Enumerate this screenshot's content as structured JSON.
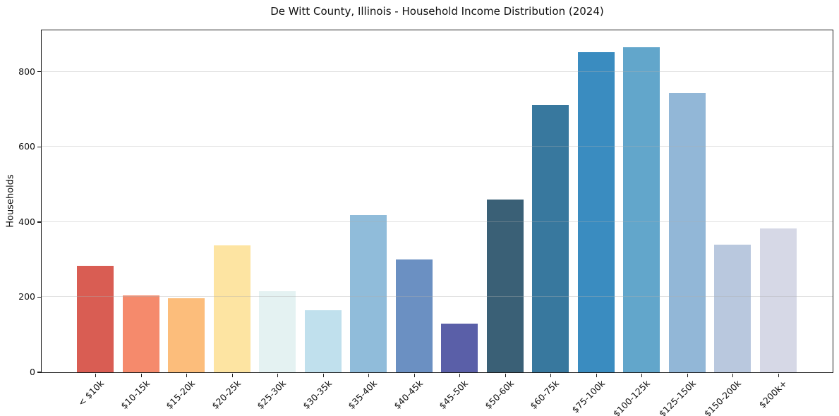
{
  "chart_data": {
    "type": "bar",
    "title": "De Witt County, Illinois - Household Income Distribution (2024)",
    "xlabel": "",
    "ylabel": "Households",
    "categories": [
      "< $10k",
      "$10-15k",
      "$15-20k",
      "$20-25k",
      "$25-30k",
      "$30-35k",
      "$35-40k",
      "$40-45k",
      "$45-50k",
      "$50-60k",
      "$60-75k",
      "$75-100k",
      "$100-125k",
      "$125-150k",
      "$150-200k",
      "$200k+"
    ],
    "values": [
      282,
      203,
      197,
      337,
      215,
      165,
      418,
      299,
      128,
      459,
      711,
      850,
      864,
      743,
      339,
      382
    ],
    "bar_colors": [
      "#d95d53",
      "#f58a6c",
      "#fcbd7b",
      "#fde4a2",
      "#e4f2f2",
      "#c0e0ed",
      "#90bcda",
      "#6b90c2",
      "#5a5fa8",
      "#3a6076",
      "#38789e",
      "#3a8cc0",
      "#62a6cb",
      "#92b7d7",
      "#b9c8de",
      "#d6d8e6"
    ],
    "yticks": [
      0,
      200,
      400,
      600,
      800
    ],
    "ylim": [
      0,
      910
    ],
    "grid": "horizontal-only",
    "legend": "none",
    "axis_color": "#1b1b1b",
    "grid_color": "#b0b0b0"
  }
}
